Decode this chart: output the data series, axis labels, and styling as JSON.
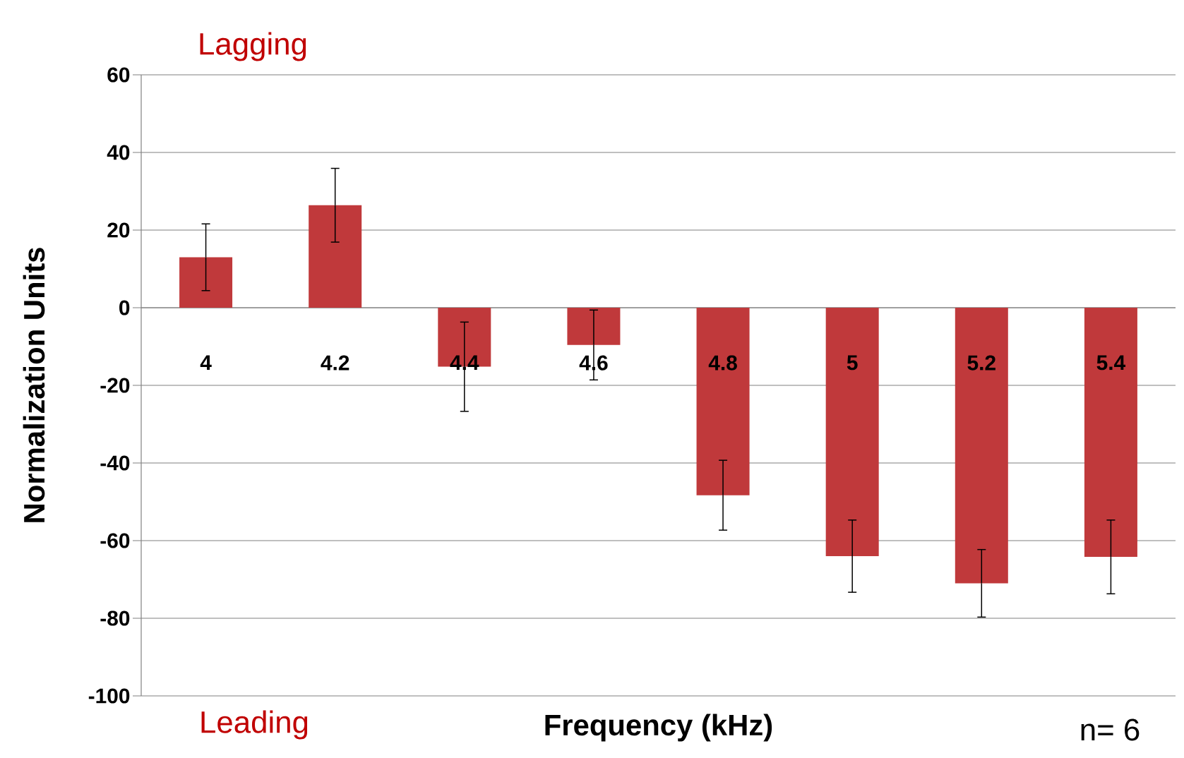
{
  "chart_data": {
    "type": "bar",
    "xlabel": "Frequency (kHz)",
    "ylabel": "Normalization Units",
    "categories": [
      "4",
      "4.2",
      "4.4",
      "4.6",
      "4.8",
      "5",
      "5.2",
      "5.4"
    ],
    "values": [
      13,
      26.4,
      -15.2,
      -9.6,
      -48.3,
      -64,
      -71,
      -64.2
    ],
    "errors": [
      8.6,
      9.5,
      11.5,
      9,
      9,
      9.3,
      8.7,
      9.5
    ],
    "color": "#c0393b",
    "ylim": [
      -100,
      60
    ],
    "yticks": [
      -100,
      -80,
      -60,
      -40,
      -20,
      0,
      20,
      40,
      60
    ],
    "grid": "y",
    "annotations": [
      "Lagging",
      "Leading",
      "n= 6"
    ]
  }
}
